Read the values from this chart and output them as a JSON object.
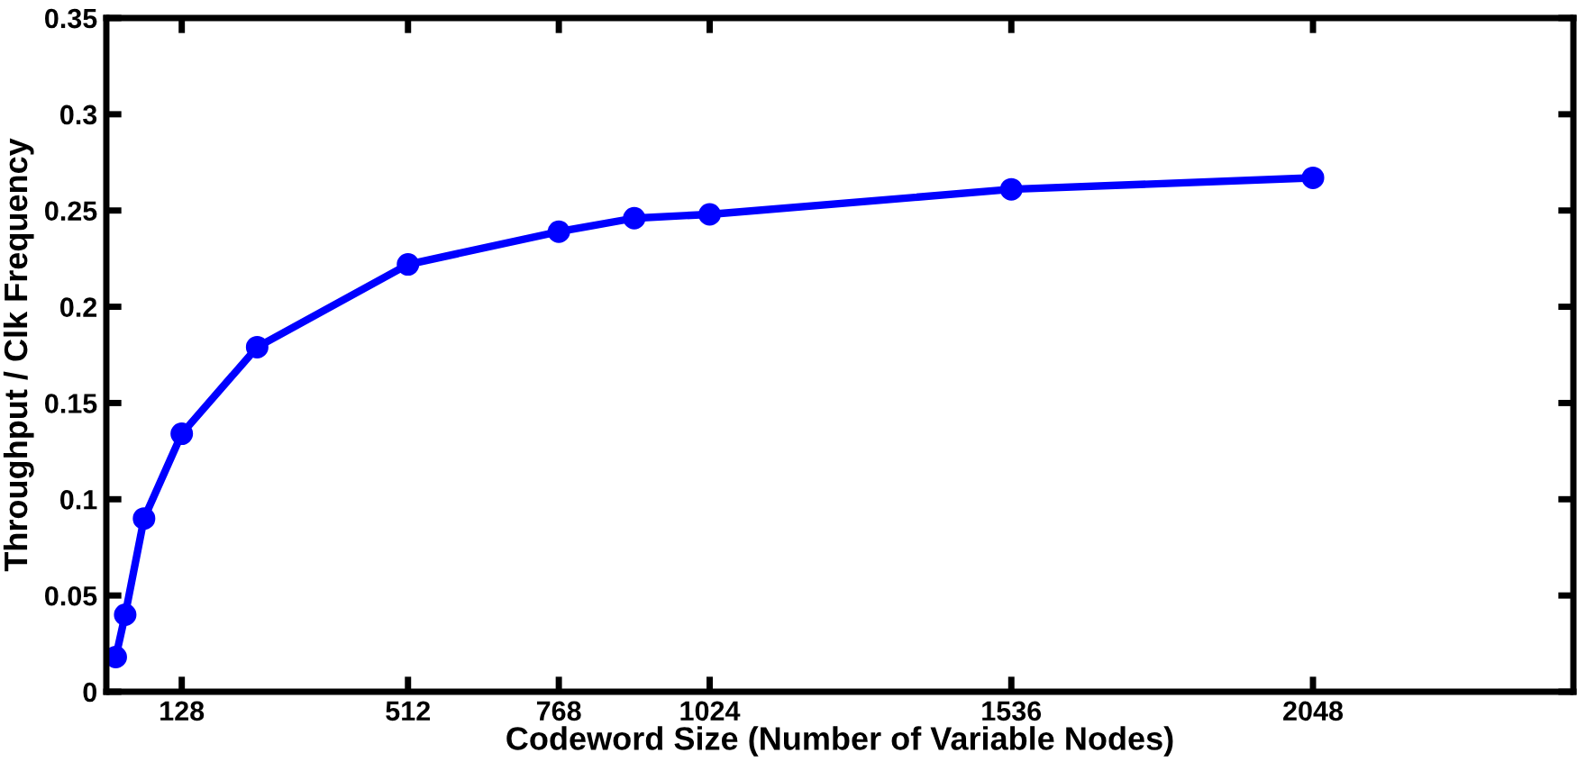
{
  "chart_data": {
    "type": "line",
    "xlabel": "Codeword Size (Number of Variable Nodes)",
    "ylabel": "Throughput / Clk Frequency",
    "x": [
      16,
      32,
      64,
      128,
      256,
      512,
      768,
      896,
      1024,
      1536,
      2048
    ],
    "series": [
      {
        "color": "#0000ff",
        "values": [
          0.018,
          0.04,
          0.09,
          0.134,
          0.179,
          0.222,
          0.239,
          0.246,
          0.248,
          0.261,
          0.267
        ]
      }
    ],
    "xlim": [
      0,
      2490
    ],
    "xticks": [
      128,
      512,
      768,
      1024,
      1536,
      2048
    ],
    "ylim": [
      0,
      0.35
    ],
    "yticks": [
      0,
      0.05,
      0.1,
      0.15,
      0.2,
      0.25,
      0.3,
      0.35
    ],
    "marker": "circle",
    "line_style": "solid",
    "grid": false,
    "legend": false
  }
}
